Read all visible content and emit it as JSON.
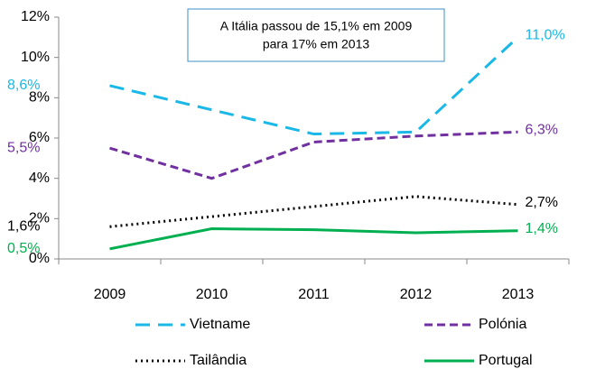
{
  "chart_data": {
    "type": "line",
    "annotation": [
      "A Itália passou de 15,1% em 2009",
      "para 17% em 2013"
    ],
    "categories": [
      "2009",
      "2010",
      "2011",
      "2012",
      "2013"
    ],
    "ylim": [
      0,
      12
    ],
    "yticks": [
      {
        "value": 0,
        "label": "0%"
      },
      {
        "value": 2,
        "label": "2%"
      },
      {
        "value": 4,
        "label": "4%"
      },
      {
        "value": 6,
        "label": "6%"
      },
      {
        "value": 8,
        "label": "8%"
      },
      {
        "value": 10,
        "label": "10%"
      },
      {
        "value": 12,
        "label": "12%"
      }
    ],
    "series": [
      {
        "name": "Vietname",
        "color": "#1ab8e6",
        "dash": "dashed",
        "values": [
          8.6,
          7.4,
          6.2,
          6.3,
          11.0
        ],
        "value_labels": [
          "8,6%",
          null,
          null,
          null,
          "11,0%"
        ]
      },
      {
        "name": "Polónia",
        "color": "#7030a0",
        "dash": "dashed-short",
        "values": [
          5.5,
          4.0,
          5.8,
          6.1,
          6.3
        ],
        "value_labels": [
          "5,5%",
          null,
          null,
          null,
          "6,3%"
        ]
      },
      {
        "name": "Tailândia",
        "color": "#000000",
        "dash": "dotted",
        "values": [
          1.6,
          2.1,
          2.6,
          3.1,
          2.7
        ],
        "value_labels": [
          "1,6%",
          null,
          null,
          null,
          "2,7%"
        ]
      },
      {
        "name": "Portugal",
        "color": "#00b050",
        "dash": "solid",
        "values": [
          0.5,
          1.5,
          1.45,
          1.3,
          1.4
        ],
        "value_labels": [
          "0,5%",
          null,
          null,
          null,
          "1,4%"
        ]
      }
    ]
  }
}
